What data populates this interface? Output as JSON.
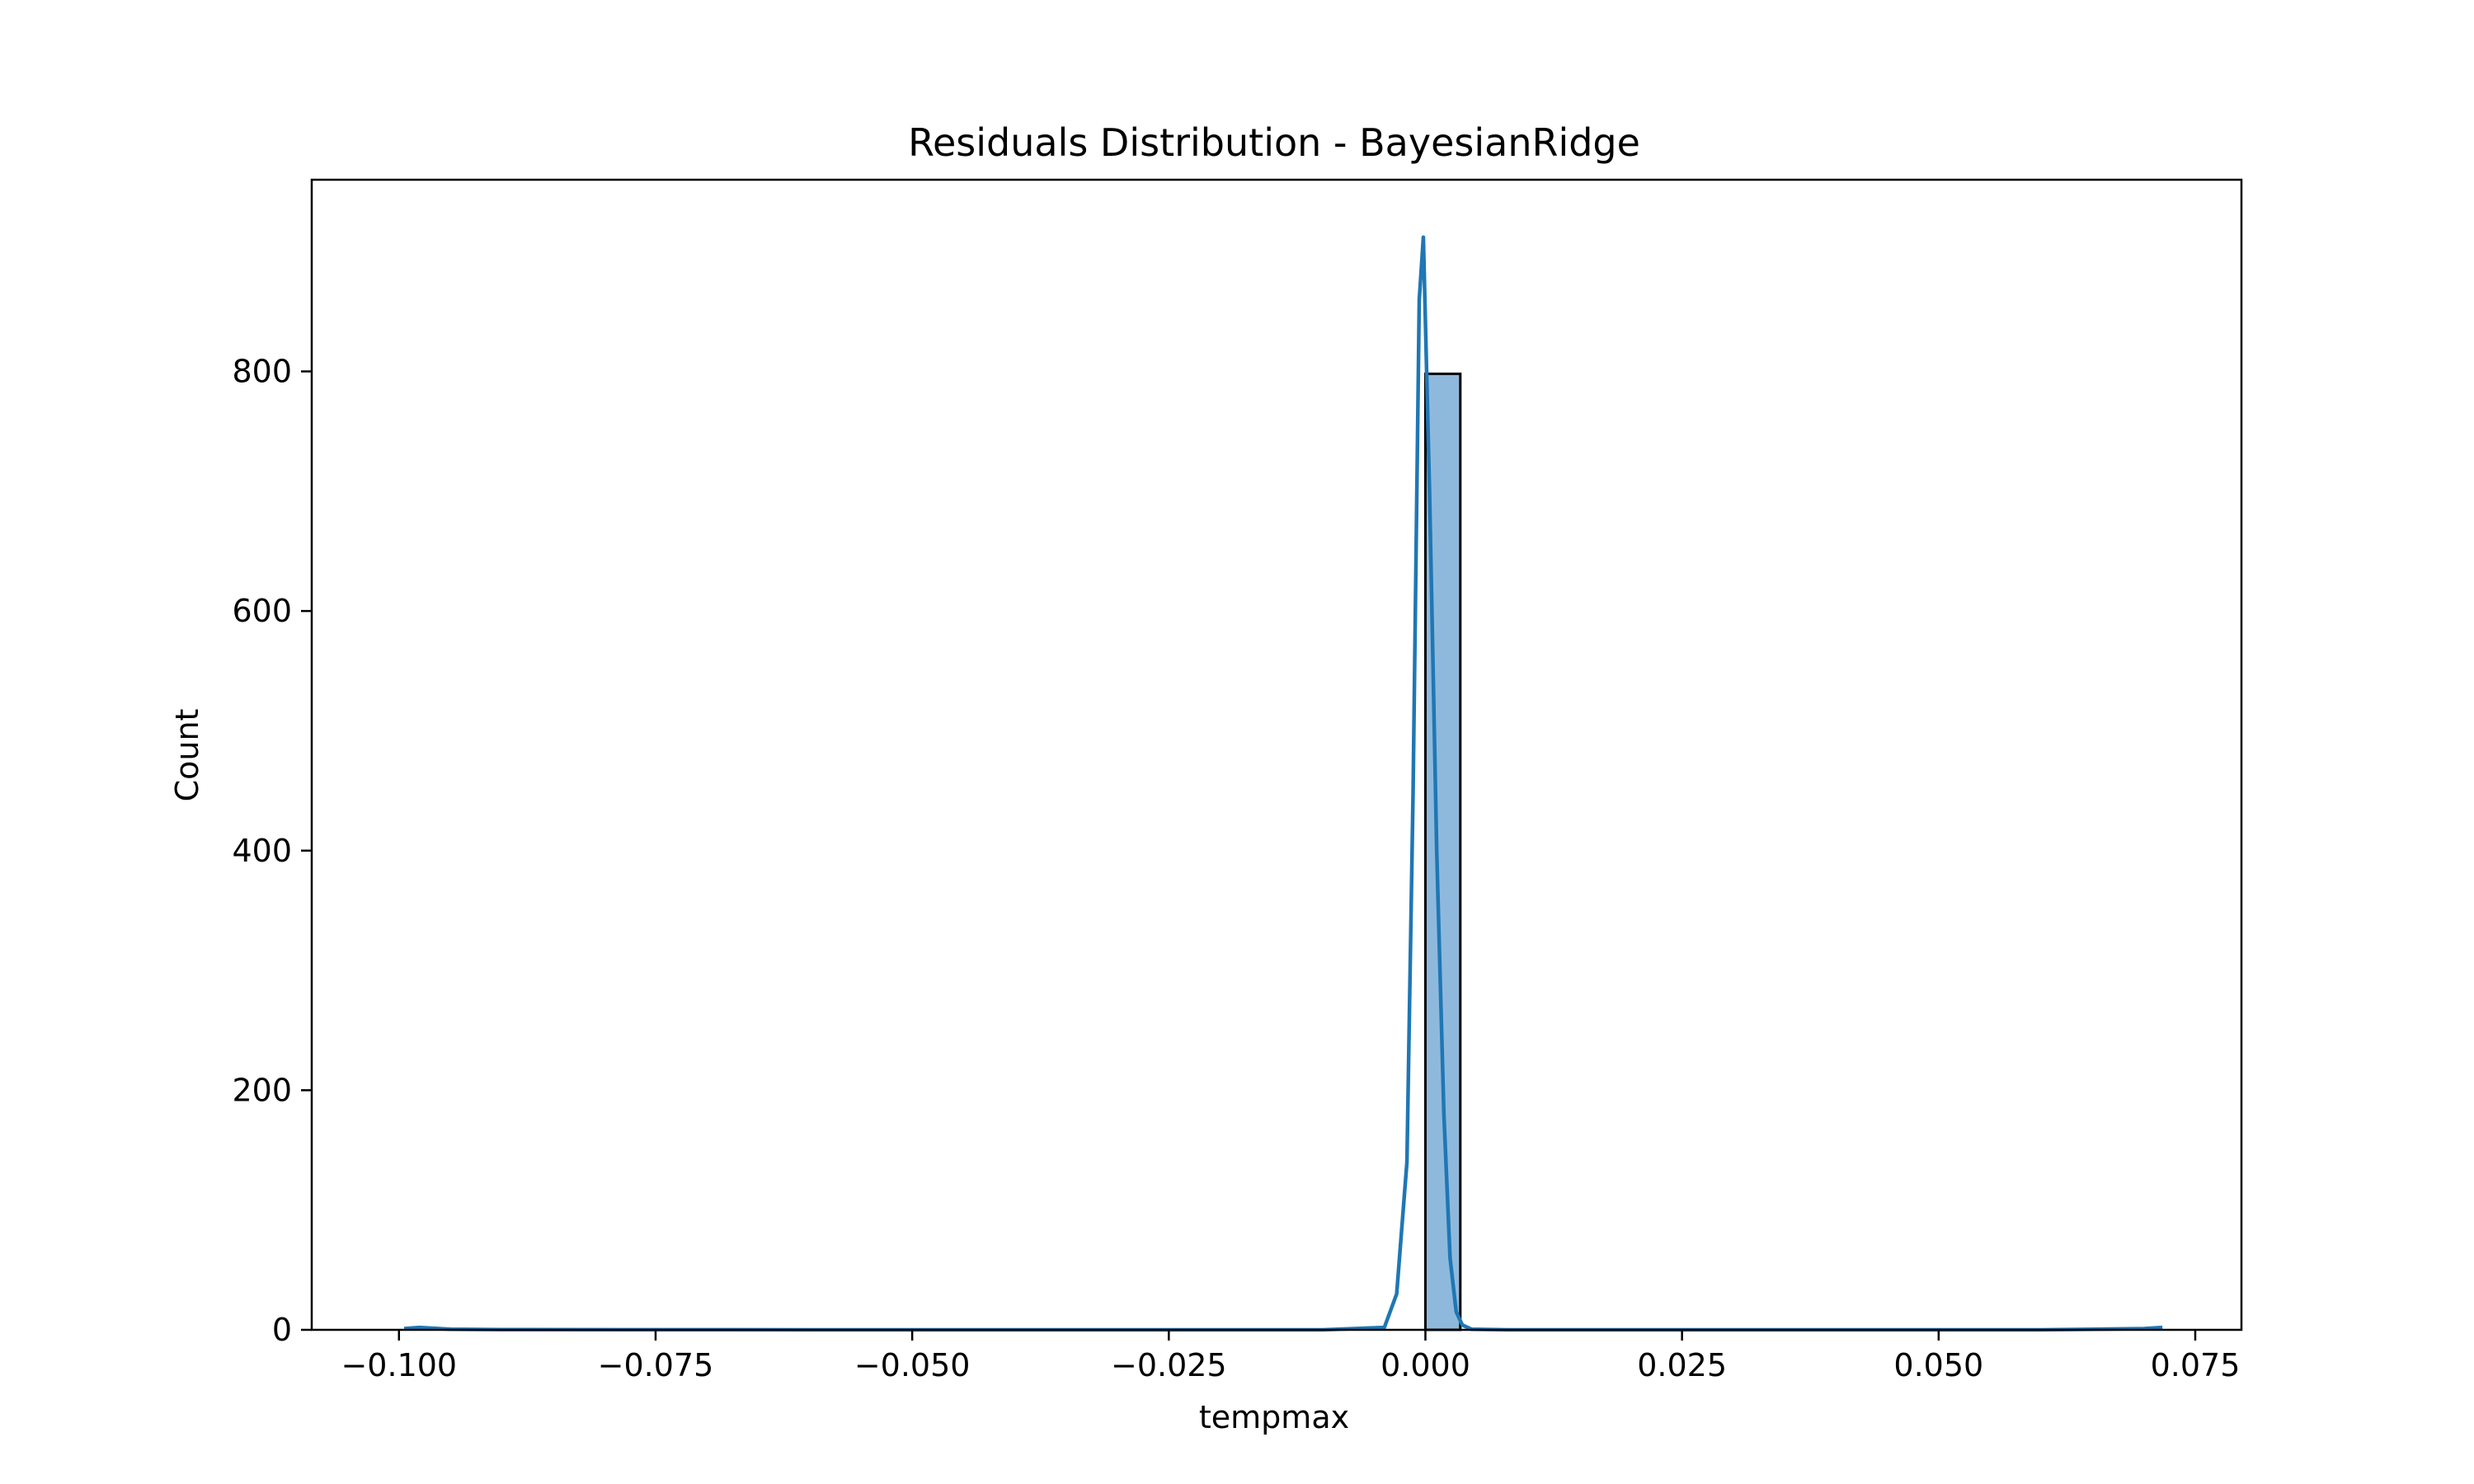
{
  "chart_data": {
    "type": "bar",
    "title": "Residuals Distribution - BayesianRidge",
    "xlabel": "tempmax",
    "ylabel": "Count",
    "xlim": [
      -0.1085,
      0.0795
    ],
    "ylim": [
      0,
      960
    ],
    "x_ticks": [
      -0.1,
      -0.075,
      -0.05,
      -0.025,
      0.0,
      0.025,
      0.05,
      0.075
    ],
    "x_tick_labels": [
      "−0.100",
      "−0.075",
      "−0.050",
      "−0.025",
      "0.000",
      "0.025",
      "0.050",
      "0.075"
    ],
    "y_ticks": [
      0,
      200,
      400,
      600,
      800
    ],
    "y_tick_labels": [
      "0",
      "200",
      "400",
      "600",
      "800"
    ],
    "grid": false,
    "legend": "none",
    "histogram": {
      "bins": [
        {
          "x0": 0.0,
          "x1": 0.0034,
          "count": 798
        }
      ],
      "fill_color": "#8fb9dc",
      "edge_color": "#000000"
    },
    "kde": {
      "color": "#1f77b4",
      "x": [
        -0.0995,
        -0.098,
        -0.095,
        -0.09,
        -0.06,
        -0.03,
        -0.01,
        -0.004,
        -0.0028,
        -0.0018,
        -0.0012,
        -0.0006,
        -0.0002,
        0.0004,
        0.0011,
        0.0018,
        0.0024,
        0.003,
        0.0036,
        0.0045,
        0.008,
        0.03,
        0.06,
        0.07,
        0.0718
      ],
      "y": [
        1,
        2,
        0.5,
        0.2,
        0,
        0,
        0,
        2,
        30,
        140,
        450,
        860,
        912,
        700,
        400,
        180,
        60,
        15,
        4,
        0.5,
        0,
        0,
        0,
        1,
        2
      ]
    }
  }
}
